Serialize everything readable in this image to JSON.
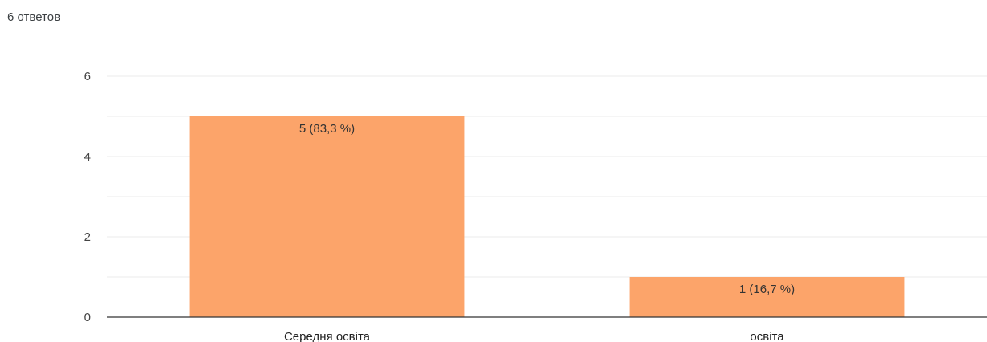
{
  "summary": {
    "responses": "6 ответов"
  },
  "colors": {
    "bar": "#fca46a",
    "grid": "#ebebeb",
    "axis": "#333333"
  },
  "chart_data": {
    "type": "bar",
    "categories": [
      "Середня освіта",
      "освіта"
    ],
    "values": [
      5,
      1
    ],
    "data_labels": [
      "5 (83,3 %)",
      "1 (16,7 %)"
    ],
    "y_ticks": [
      "0",
      "2",
      "4",
      "6"
    ],
    "ylim": [
      0,
      6
    ],
    "grid": true
  }
}
